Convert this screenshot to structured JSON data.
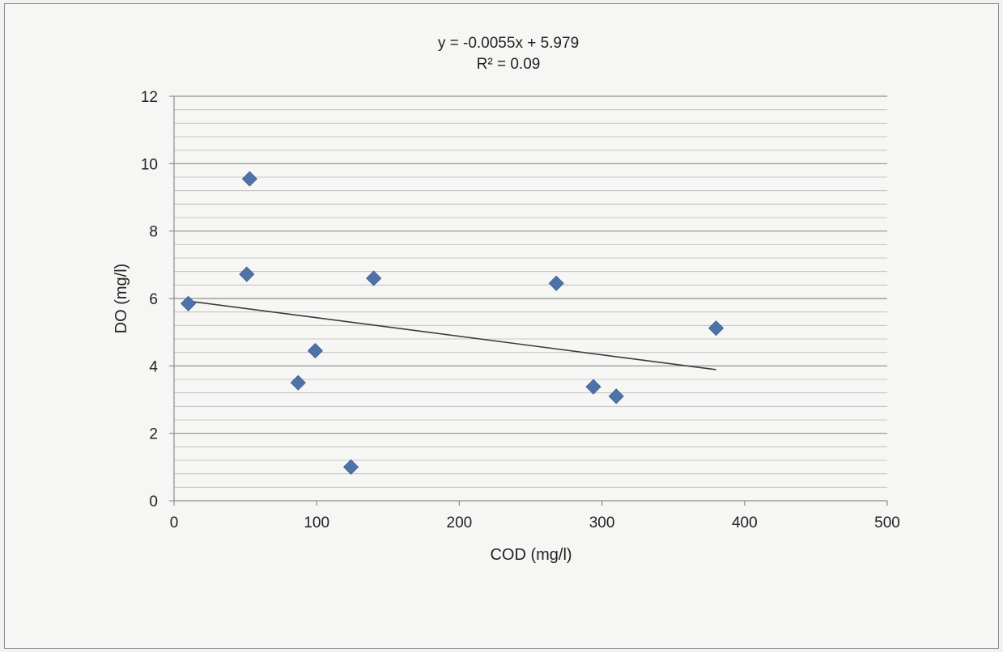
{
  "chart_data": {
    "type": "scatter",
    "equation": "y = -0.0055x + 5.979",
    "r_squared": "R² = 0.09",
    "xlabel": "COD (mg/l)",
    "ylabel": "DO (mg/l)",
    "xlim": [
      0,
      500
    ],
    "ylim": [
      0,
      12
    ],
    "x_ticks": [
      0,
      100,
      200,
      300,
      400,
      500
    ],
    "y_ticks": [
      0,
      2,
      4,
      6,
      8,
      10,
      12
    ],
    "y_minor_step": 0.4,
    "grid": true,
    "marker_color": "#4f73a8",
    "line_color": "#3b3b3b",
    "trendline": {
      "slope": -0.0055,
      "intercept": 5.979,
      "x_range": [
        10,
        380
      ]
    },
    "series": [
      {
        "x": [
          10,
          51,
          53,
          87,
          99,
          124,
          140,
          268,
          294,
          310,
          380
        ],
        "y": [
          5.85,
          6.72,
          9.55,
          3.5,
          4.45,
          1.0,
          6.6,
          6.45,
          3.38,
          3.1,
          5.12
        ]
      }
    ]
  }
}
